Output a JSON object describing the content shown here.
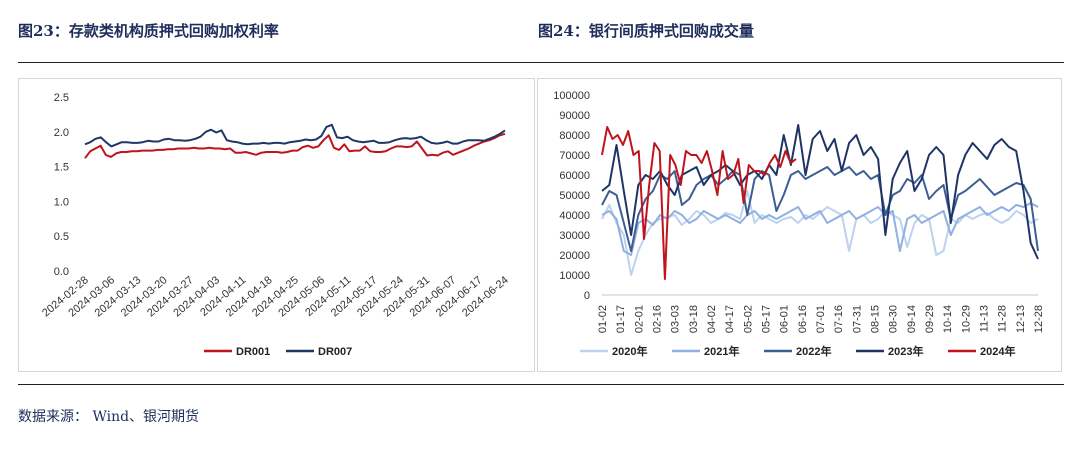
{
  "header": {
    "left_title": "图23：存款类机构质押式回购加权利率",
    "right_title": "图24：银行间质押式回购成交量"
  },
  "footer": {
    "source": "数据来源：  Wind、银河期货"
  },
  "colors": {
    "dr001": "#c0141d",
    "dr007": "#1f3764",
    "y2020": "#bcd2ee",
    "y2021": "#8fb0e0",
    "y2022": "#3c5f93",
    "y2023": "#1f3466",
    "y2024": "#c0141d"
  },
  "chart_data": [
    {
      "type": "line",
      "xlabel": "",
      "ylabel": "",
      "ylim": [
        0,
        2.5
      ],
      "yticks": [
        "2.5",
        "2.0",
        "1.5",
        "1.0",
        "0.5",
        "0.0"
      ],
      "x_tick_labels": [
        "2024-02-28",
        "2024-03-06",
        "2024-03-13",
        "2024-03-20",
        "2024-03-27",
        "2024-04-03",
        "2024-04-11",
        "2024-04-18",
        "2024-04-25",
        "2024-05-06",
        "2024-05-11",
        "2024-05-17",
        "2024-05-24",
        "2024-05-31",
        "2024-06-07",
        "2024-06-17",
        "2024-06-24"
      ],
      "legend_position": "bottom",
      "series": [
        {
          "name": "DR001",
          "values": [
            1.62,
            1.72,
            1.76,
            1.8,
            1.67,
            1.64,
            1.69,
            1.71,
            1.71,
            1.72,
            1.72,
            1.73,
            1.73,
            1.73,
            1.74,
            1.74,
            1.75,
            1.75,
            1.76,
            1.76,
            1.76,
            1.77,
            1.76,
            1.76,
            1.77,
            1.76,
            1.76,
            1.75,
            1.76,
            1.7,
            1.7,
            1.71,
            1.69,
            1.67,
            1.7,
            1.71,
            1.71,
            1.71,
            1.7,
            1.71,
            1.73,
            1.73,
            1.78,
            1.8,
            1.77,
            1.79,
            1.88,
            1.95,
            1.77,
            1.74,
            1.82,
            1.72,
            1.73,
            1.73,
            1.79,
            1.72,
            1.71,
            1.71,
            1.72,
            1.76,
            1.79,
            1.79,
            1.78,
            1.79,
            1.86,
            1.76,
            1.66,
            1.67,
            1.66,
            1.7,
            1.72,
            1.67,
            1.7,
            1.73,
            1.76,
            1.8,
            1.83,
            1.86,
            1.88,
            1.91,
            1.95,
            1.97
          ]
        },
        {
          "name": "DR007",
          "values": [
            1.82,
            1.85,
            1.9,
            1.92,
            1.85,
            1.79,
            1.82,
            1.85,
            1.85,
            1.84,
            1.84,
            1.85,
            1.87,
            1.86,
            1.86,
            1.89,
            1.9,
            1.88,
            1.88,
            1.87,
            1.88,
            1.9,
            1.93,
            2.0,
            2.03,
            1.99,
            2.02,
            1.88,
            1.86,
            1.85,
            1.83,
            1.82,
            1.83,
            1.83,
            1.84,
            1.83,
            1.84,
            1.84,
            1.83,
            1.85,
            1.86,
            1.87,
            1.89,
            1.88,
            1.89,
            1.94,
            2.07,
            2.1,
            1.92,
            1.91,
            1.93,
            1.88,
            1.86,
            1.85,
            1.86,
            1.87,
            1.84,
            1.84,
            1.85,
            1.88,
            1.9,
            1.91,
            1.9,
            1.91,
            1.93,
            1.88,
            1.84,
            1.83,
            1.84,
            1.86,
            1.83,
            1.83,
            1.86,
            1.88,
            1.88,
            1.88,
            1.87,
            1.9,
            1.93,
            1.97,
            2.02
          ]
        }
      ]
    },
    {
      "type": "line",
      "xlabel": "",
      "ylabel": "",
      "ylim": [
        0,
        100000
      ],
      "yticks": [
        "100000",
        "90000",
        "80000",
        "70000",
        "60000",
        "50000",
        "40000",
        "30000",
        "20000",
        "10000",
        "0"
      ],
      "x_tick_labels": [
        "01-02",
        "01-17",
        "02-01",
        "02-16",
        "03-03",
        "03-18",
        "04-02",
        "04-17",
        "05-02",
        "05-17",
        "06-01",
        "06-16",
        "07-01",
        "07-16",
        "07-31",
        "08-15",
        "08-30",
        "09-14",
        "09-29",
        "10-14",
        "10-29",
        "11-13",
        "11-28",
        "12-13",
        "12-28"
      ],
      "legend_position": "bottom",
      "series": [
        {
          "name": "2020年",
          "values": [
            38000,
            45000,
            36000,
            30000,
            10000,
            22000,
            30000,
            36000,
            38000,
            39000,
            40000,
            35000,
            38000,
            42000,
            40000,
            36000,
            38000,
            41000,
            40000,
            38000,
            52000,
            36000,
            40000,
            38000,
            36000,
            38000,
            39000,
            36000,
            40000,
            38000,
            41000,
            44000,
            42000,
            40000,
            22000,
            38000,
            40000,
            36000,
            38000,
            42000,
            40000,
            38000,
            24000,
            36000,
            40000,
            38000,
            20000,
            22000,
            38000,
            36000,
            40000,
            38000,
            40000,
            41000,
            38000,
            36000,
            38000,
            42000,
            40000,
            36000,
            38000
          ]
        },
        {
          "name": "2021年",
          "values": [
            40000,
            42000,
            38000,
            22000,
            20000,
            36000,
            38000,
            35000,
            40000,
            38000,
            42000,
            40000,
            36000,
            38000,
            42000,
            40000,
            38000,
            40000,
            38000,
            36000,
            40000,
            42000,
            38000,
            40000,
            38000,
            40000,
            42000,
            44000,
            38000,
            40000,
            42000,
            36000,
            38000,
            40000,
            42000,
            38000,
            40000,
            42000,
            44000,
            40000,
            42000,
            22000,
            38000,
            40000,
            36000,
            38000,
            40000,
            42000,
            30000,
            38000,
            40000,
            42000,
            44000,
            40000,
            42000,
            44000,
            42000,
            45000,
            44000,
            46000,
            44000
          ]
        },
        {
          "name": "2022年",
          "values": [
            45000,
            52000,
            50000,
            36000,
            22000,
            40000,
            48000,
            52000,
            60000,
            58000,
            62000,
            45000,
            48000,
            55000,
            58000,
            60000,
            55000,
            58000,
            62000,
            60000,
            40000,
            58000,
            62000,
            60000,
            42000,
            50000,
            60000,
            62000,
            58000,
            60000,
            62000,
            64000,
            60000,
            62000,
            64000,
            60000,
            62000,
            58000,
            60000,
            40000,
            50000,
            52000,
            58000,
            56000,
            60000,
            48000,
            52000,
            55000,
            38000,
            50000,
            52000,
            55000,
            58000,
            54000,
            50000,
            52000,
            54000,
            56000,
            55000,
            48000,
            22000
          ]
        },
        {
          "name": "2023年",
          "values": [
            52000,
            55000,
            75000,
            52000,
            30000,
            55000,
            60000,
            58000,
            62000,
            55000,
            50000,
            60000,
            62000,
            64000,
            55000,
            60000,
            62000,
            65000,
            62000,
            55000,
            60000,
            62000,
            58000,
            65000,
            60000,
            80000,
            65000,
            85000,
            60000,
            78000,
            82000,
            72000,
            78000,
            62000,
            76000,
            80000,
            70000,
            74000,
            68000,
            30000,
            58000,
            66000,
            72000,
            52000,
            58000,
            70000,
            74000,
            70000,
            36000,
            60000,
            70000,
            76000,
            72000,
            68000,
            75000,
            78000,
            74000,
            72000,
            52000,
            26000,
            18000
          ]
        },
        {
          "name": "2024年",
          "values": [
            70000,
            84000,
            78000,
            80000,
            75000,
            82000,
            70000,
            72000,
            28000,
            55000,
            76000,
            72000,
            8000,
            70000,
            65000,
            55000,
            72000,
            70000,
            70000,
            66000,
            72000,
            62000,
            50000,
            72000,
            58000,
            60000,
            68000,
            46000,
            65000,
            62000,
            62000,
            60000,
            66000,
            70000,
            64000,
            72000,
            66000,
            68000
          ]
        }
      ]
    }
  ]
}
